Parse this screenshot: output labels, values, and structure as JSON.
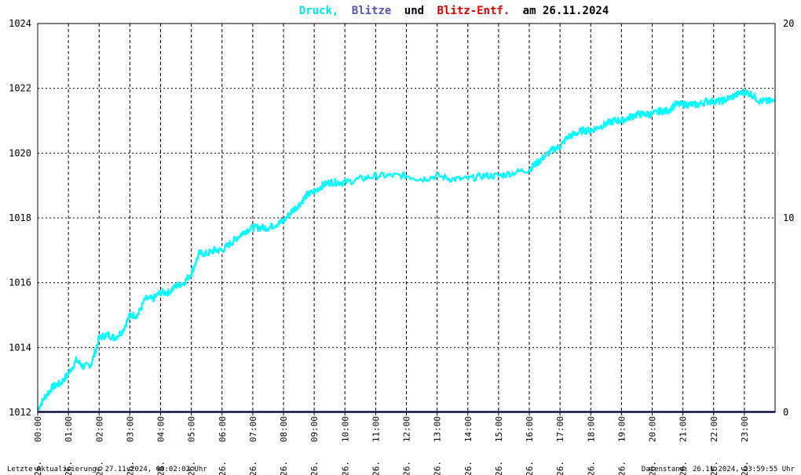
{
  "title": {
    "part1": "Druck,",
    "part2": "Blitze",
    "part3": "und",
    "part4": "Blitz-Entf.",
    "part5": "am 26.11.2024"
  },
  "colors": {
    "pressure": "#00ffff",
    "lightning": "#5555bb",
    "distance": "#dd0000",
    "text": "#000000",
    "grid": "#000000"
  },
  "footer": {
    "left": "Letzte Aktualisierung: 27.11.2024, 00:02:02 Uhr",
    "right": "Datenstand: 26.11.2024, 23:59:55 Uhr"
  },
  "chart_data": {
    "type": "line",
    "grid": true,
    "left_axis": {
      "min": 1012,
      "max": 1024,
      "ticks": [
        "1012",
        "1014",
        "1016",
        "1018",
        "1020",
        "1022",
        "1024"
      ]
    },
    "right_axis": {
      "min": 0,
      "max": 20,
      "ticks": [
        "0",
        "10",
        "20"
      ]
    },
    "x_axis": {
      "min_hour": 0,
      "max_hour": 24,
      "ticks": [
        {
          "day": "26.",
          "time": "00:00"
        },
        {
          "day": "26.",
          "time": "01:00"
        },
        {
          "day": "26.",
          "time": "02:00"
        },
        {
          "day": "26.",
          "time": "03:00"
        },
        {
          "day": "26.",
          "time": "04:00"
        },
        {
          "day": "26.",
          "time": "05:00"
        },
        {
          "day": "26.",
          "time": "06:00"
        },
        {
          "day": "26.",
          "time": "07:00"
        },
        {
          "day": "26.",
          "time": "08:00"
        },
        {
          "day": "26.",
          "time": "09:00"
        },
        {
          "day": "26.",
          "time": "10:00"
        },
        {
          "day": "26.",
          "time": "11:00"
        },
        {
          "day": "26.",
          "time": "12:00"
        },
        {
          "day": "26.",
          "time": "13:00"
        },
        {
          "day": "26.",
          "time": "14:00"
        },
        {
          "day": "26.",
          "time": "15:00"
        },
        {
          "day": "26.",
          "time": "16:00"
        },
        {
          "day": "26.",
          "time": "17:00"
        },
        {
          "day": "26.",
          "time": "18:00"
        },
        {
          "day": "26.",
          "time": "19:00"
        },
        {
          "day": "26.",
          "time": "20:00"
        },
        {
          "day": "26.",
          "time": "21:00"
        },
        {
          "day": "26.",
          "time": "22:00"
        },
        {
          "day": "26.",
          "time": "23:00"
        }
      ]
    },
    "series": [
      {
        "name": "Druck",
        "axis": "left",
        "points": [
          [
            0.0,
            1012.1
          ],
          [
            0.25,
            1012.5
          ],
          [
            0.5,
            1012.8
          ],
          [
            0.75,
            1012.9
          ],
          [
            1.0,
            1013.2
          ],
          [
            1.25,
            1013.6
          ],
          [
            1.5,
            1013.4
          ],
          [
            1.75,
            1013.5
          ],
          [
            2.0,
            1014.3
          ],
          [
            2.25,
            1014.4
          ],
          [
            2.5,
            1014.3
          ],
          [
            2.75,
            1014.5
          ],
          [
            3.0,
            1015.0
          ],
          [
            3.25,
            1015.0
          ],
          [
            3.5,
            1015.5
          ],
          [
            3.75,
            1015.5
          ],
          [
            4.0,
            1015.7
          ],
          [
            4.25,
            1015.7
          ],
          [
            4.5,
            1015.9
          ],
          [
            4.75,
            1016.0
          ],
          [
            5.0,
            1016.3
          ],
          [
            5.25,
            1016.9
          ],
          [
            5.5,
            1016.9
          ],
          [
            5.75,
            1017.0
          ],
          [
            6.0,
            1017.0
          ],
          [
            6.25,
            1017.2
          ],
          [
            6.5,
            1017.4
          ],
          [
            6.75,
            1017.6
          ],
          [
            7.0,
            1017.7
          ],
          [
            7.25,
            1017.7
          ],
          [
            7.5,
            1017.7
          ],
          [
            7.75,
            1017.8
          ],
          [
            8.0,
            1017.9
          ],
          [
            8.25,
            1018.2
          ],
          [
            8.5,
            1018.4
          ],
          [
            8.75,
            1018.7
          ],
          [
            9.0,
            1018.8
          ],
          [
            9.25,
            1019.0
          ],
          [
            9.5,
            1019.1
          ],
          [
            9.75,
            1019.1
          ],
          [
            10.0,
            1019.1
          ],
          [
            10.5,
            1019.2
          ],
          [
            11.0,
            1019.3
          ],
          [
            11.5,
            1019.3
          ],
          [
            12.0,
            1019.3
          ],
          [
            12.5,
            1019.2
          ],
          [
            13.0,
            1019.3
          ],
          [
            13.5,
            1019.2
          ],
          [
            14.0,
            1019.2
          ],
          [
            14.5,
            1019.3
          ],
          [
            15.0,
            1019.3
          ],
          [
            15.5,
            1019.4
          ],
          [
            16.0,
            1019.5
          ],
          [
            16.25,
            1019.7
          ],
          [
            16.5,
            1019.9
          ],
          [
            16.75,
            1020.1
          ],
          [
            17.0,
            1020.2
          ],
          [
            17.25,
            1020.5
          ],
          [
            17.5,
            1020.6
          ],
          [
            17.75,
            1020.7
          ],
          [
            18.0,
            1020.7
          ],
          [
            18.25,
            1020.8
          ],
          [
            18.5,
            1020.9
          ],
          [
            18.75,
            1021.0
          ],
          [
            19.0,
            1021.0
          ],
          [
            19.25,
            1021.1
          ],
          [
            19.5,
            1021.2
          ],
          [
            19.75,
            1021.2
          ],
          [
            20.0,
            1021.2
          ],
          [
            20.25,
            1021.3
          ],
          [
            20.5,
            1021.3
          ],
          [
            20.75,
            1021.5
          ],
          [
            21.0,
            1021.5
          ],
          [
            21.25,
            1021.5
          ],
          [
            21.5,
            1021.5
          ],
          [
            21.75,
            1021.6
          ],
          [
            22.0,
            1021.6
          ],
          [
            22.25,
            1021.6
          ],
          [
            22.5,
            1021.7
          ],
          [
            22.75,
            1021.8
          ],
          [
            23.0,
            1021.9
          ],
          [
            23.25,
            1021.8
          ],
          [
            23.5,
            1021.6
          ],
          [
            23.75,
            1021.6
          ],
          [
            24.0,
            1021.6
          ]
        ]
      },
      {
        "name": "Blitze",
        "axis": "right",
        "points": [
          [
            0,
            0
          ],
          [
            24,
            0
          ]
        ]
      }
    ]
  }
}
